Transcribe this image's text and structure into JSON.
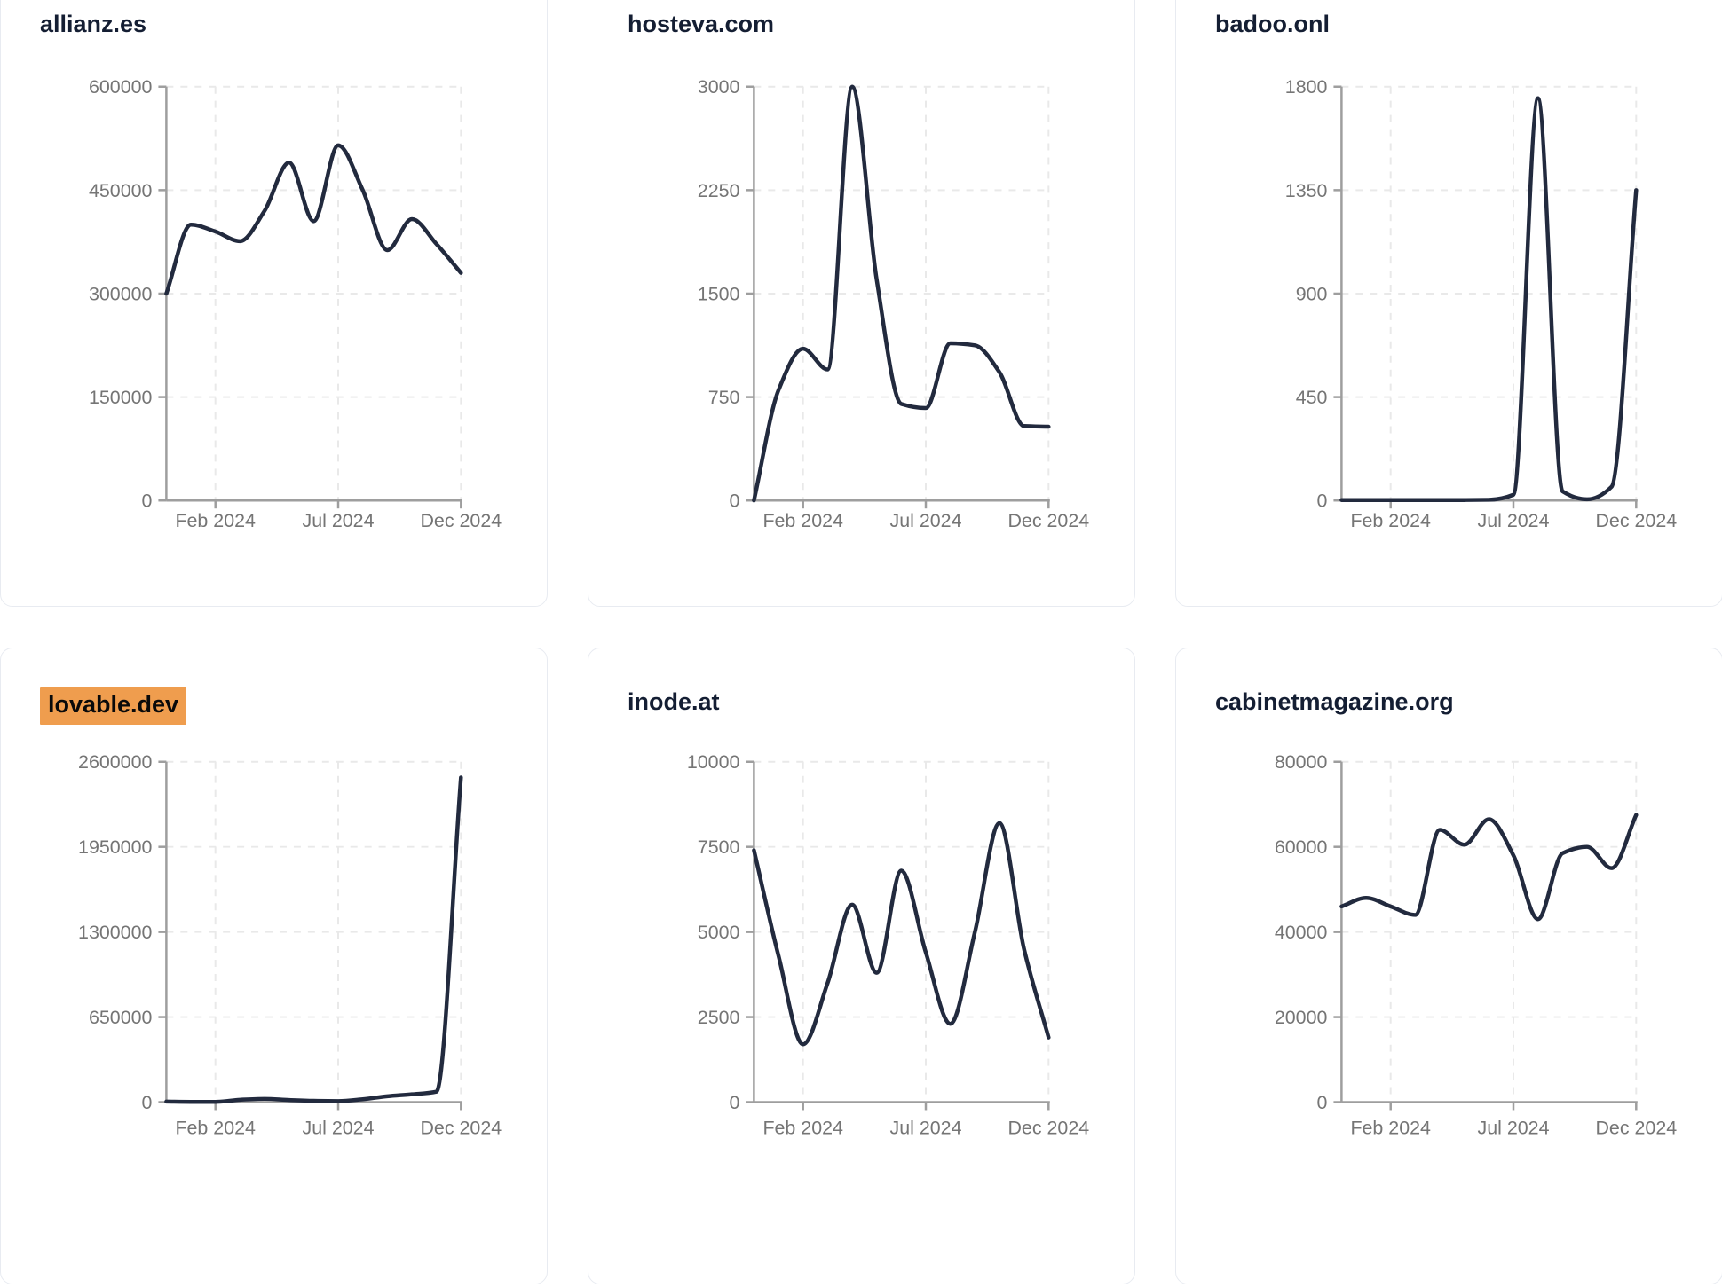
{
  "style": {
    "background": "#ffffff",
    "card_border_color": "#e8ebf1",
    "title_color": "#141e33",
    "highlight_color": "#ef9d4e",
    "line_color": "#222a3e",
    "axis_color": "#9e9e9e",
    "grid_color": "#e9e9e9",
    "tick_label_color": "#757575"
  },
  "chart_data": [
    {
      "type": "line",
      "title": "allianz.es",
      "highlighted": false,
      "x_months": [
        "2023-12",
        "2024-01",
        "2024-02",
        "2024-03",
        "2024-04",
        "2024-05",
        "2024-06",
        "2024-07",
        "2024-08",
        "2024-09",
        "2024-10",
        "2024-11",
        "2024-12"
      ],
      "values": [
        300000,
        400000,
        390000,
        376000,
        420000,
        490000,
        405000,
        515000,
        450000,
        363000,
        408000,
        372000,
        330000
      ],
      "ylim": [
        0,
        600000
      ],
      "y_ticks": [
        0,
        150000,
        300000,
        450000,
        600000
      ],
      "x_ticks": [
        {
          "label": "Feb 2024",
          "month_index": 2
        },
        {
          "label": "Jul 2024",
          "month_index": 7
        },
        {
          "label": "Dec 2024",
          "month_index": 12
        }
      ],
      "grid": "dashed",
      "legend": "none"
    },
    {
      "type": "line",
      "title": "hosteva.com",
      "highlighted": false,
      "x_months": [
        "2023-12",
        "2024-01",
        "2024-02",
        "2024-03",
        "2024-04",
        "2024-05",
        "2024-06",
        "2024-07",
        "2024-08",
        "2024-09",
        "2024-10",
        "2024-11",
        "2024-12"
      ],
      "values": [
        0,
        800,
        1100,
        950,
        3000,
        1600,
        700,
        670,
        1140,
        1125,
        930,
        540,
        535
      ],
      "ylim": [
        0,
        3000
      ],
      "y_ticks": [
        0,
        750,
        1500,
        2250,
        3000
      ],
      "x_ticks": [
        {
          "label": "Feb 2024",
          "month_index": 2
        },
        {
          "label": "Jul 2024",
          "month_index": 7
        },
        {
          "label": "Dec 2024",
          "month_index": 12
        }
      ],
      "grid": "dashed",
      "legend": "none"
    },
    {
      "type": "line",
      "title": "badoo.onl",
      "highlighted": false,
      "x_months": [
        "2023-12",
        "2024-01",
        "2024-02",
        "2024-03",
        "2024-04",
        "2024-05",
        "2024-06",
        "2024-07",
        "2024-08",
        "2024-09",
        "2024-10",
        "2024-11",
        "2024-12"
      ],
      "values": [
        2,
        2,
        2,
        2,
        2,
        2,
        3,
        25,
        1750,
        40,
        5,
        60,
        1350
      ],
      "ylim": [
        0,
        1800
      ],
      "y_ticks": [
        0,
        450,
        900,
        1350,
        1800
      ],
      "x_ticks": [
        {
          "label": "Feb 2024",
          "month_index": 2
        },
        {
          "label": "Jul 2024",
          "month_index": 7
        },
        {
          "label": "Dec 2024",
          "month_index": 12
        }
      ],
      "grid": "dashed",
      "legend": "none"
    },
    {
      "type": "line",
      "title": "lovable.dev",
      "highlighted": true,
      "x_months": [
        "2023-12",
        "2024-01",
        "2024-02",
        "2024-03",
        "2024-04",
        "2024-05",
        "2024-06",
        "2024-07",
        "2024-08",
        "2024-09",
        "2024-10",
        "2024-11",
        "2024-12"
      ],
      "values": [
        4000,
        2000,
        2000,
        18000,
        25000,
        16000,
        10000,
        8000,
        22000,
        45000,
        60000,
        80000,
        2480000
      ],
      "ylim": [
        0,
        2600000
      ],
      "y_ticks": [
        0,
        650000,
        1300000,
        1950000,
        2600000
      ],
      "x_ticks": [
        {
          "label": "Feb 2024",
          "month_index": 2
        },
        {
          "label": "Jul 2024",
          "month_index": 7
        },
        {
          "label": "Dec 2024",
          "month_index": 12
        }
      ],
      "grid": "dashed",
      "legend": "none"
    },
    {
      "type": "line",
      "title": "inode.at",
      "highlighted": false,
      "x_months": [
        "2023-12",
        "2024-01",
        "2024-02",
        "2024-03",
        "2024-04",
        "2024-05",
        "2024-06",
        "2024-07",
        "2024-08",
        "2024-09",
        "2024-10",
        "2024-11",
        "2024-12"
      ],
      "values": [
        7400,
        4300,
        1700,
        3500,
        5800,
        3800,
        6800,
        4400,
        2300,
        5000,
        8200,
        4500,
        1900
      ],
      "ylim": [
        0,
        10000
      ],
      "y_ticks": [
        0,
        2500,
        5000,
        7500,
        10000
      ],
      "x_ticks": [
        {
          "label": "Feb 2024",
          "month_index": 2
        },
        {
          "label": "Jul 2024",
          "month_index": 7
        },
        {
          "label": "Dec 2024",
          "month_index": 12
        }
      ],
      "grid": "dashed",
      "legend": "none"
    },
    {
      "type": "line",
      "title": "cabinetmagazine.org",
      "highlighted": false,
      "x_months": [
        "2023-12",
        "2024-01",
        "2024-02",
        "2024-03",
        "2024-04",
        "2024-05",
        "2024-06",
        "2024-07",
        "2024-08",
        "2024-09",
        "2024-10",
        "2024-11",
        "2024-12"
      ],
      "values": [
        46000,
        48000,
        46000,
        44000,
        64000,
        60500,
        66500,
        58000,
        43000,
        58500,
        60000,
        55000,
        67500
      ],
      "ylim": [
        0,
        80000
      ],
      "y_ticks": [
        0,
        20000,
        40000,
        60000,
        80000
      ],
      "x_ticks": [
        {
          "label": "Feb 2024",
          "month_index": 2
        },
        {
          "label": "Jul 2024",
          "month_index": 7
        },
        {
          "label": "Dec 2024",
          "month_index": 12
        }
      ],
      "grid": "dashed",
      "legend": "none"
    }
  ]
}
